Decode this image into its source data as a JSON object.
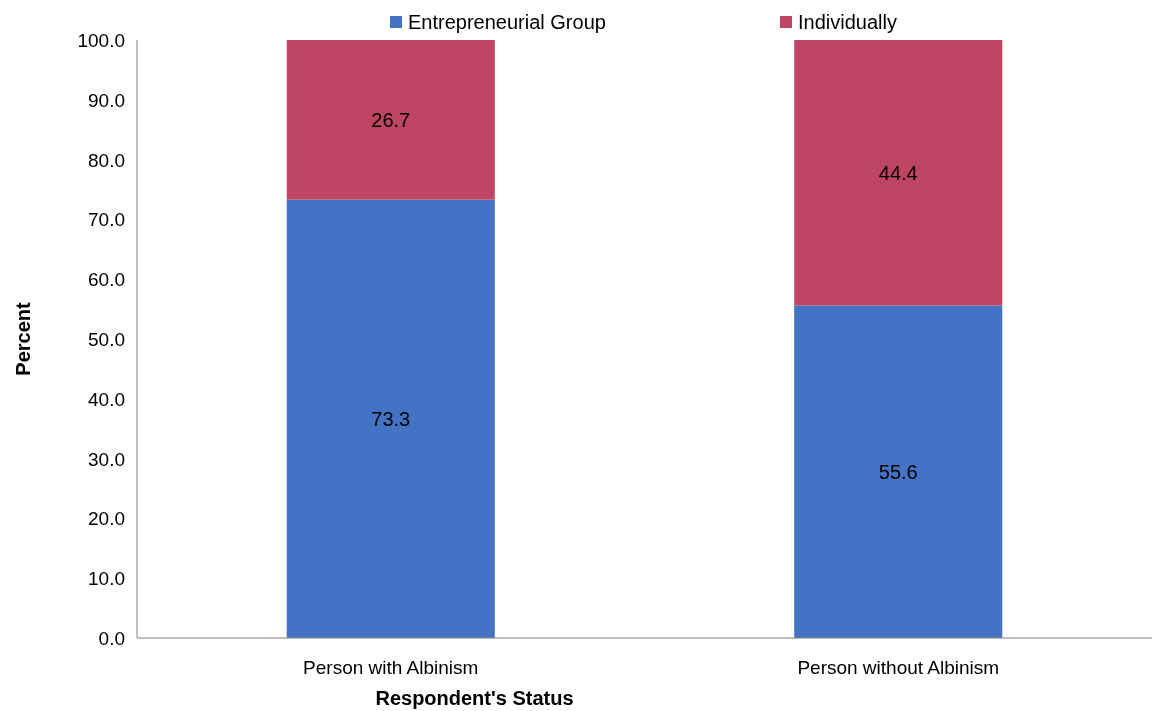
{
  "chart_data": {
    "type": "bar",
    "stacked": true,
    "xlabel": "Respondent's Status",
    "ylabel": "Percent",
    "categories": [
      "Person with Albinism",
      "Person without Albinism"
    ],
    "series": [
      {
        "name": "Entrepreneurial Group",
        "color": "#4472c4",
        "values": [
          73.3,
          55.6
        ]
      },
      {
        "name": "Individually",
        "color": "#be4564",
        "values": [
          26.7,
          44.4
        ]
      }
    ],
    "ylim": [
      0,
      100
    ],
    "yticks": [
      {
        "value": 0,
        "label": "0.0"
      },
      {
        "value": 10,
        "label": "10.0"
      },
      {
        "value": 20,
        "label": "20.0"
      },
      {
        "value": 30,
        "label": "30.0"
      },
      {
        "value": 40,
        "label": "40.0"
      },
      {
        "value": 50,
        "label": "50.0"
      },
      {
        "value": 60,
        "label": "60.0"
      },
      {
        "value": 70,
        "label": "70.0"
      },
      {
        "value": 80,
        "label": "80.0"
      },
      {
        "value": 90,
        "label": "90.0"
      },
      {
        "value": 100,
        "label": "100.0"
      }
    ],
    "data_labels": true,
    "legend": "top",
    "grid": false
  }
}
